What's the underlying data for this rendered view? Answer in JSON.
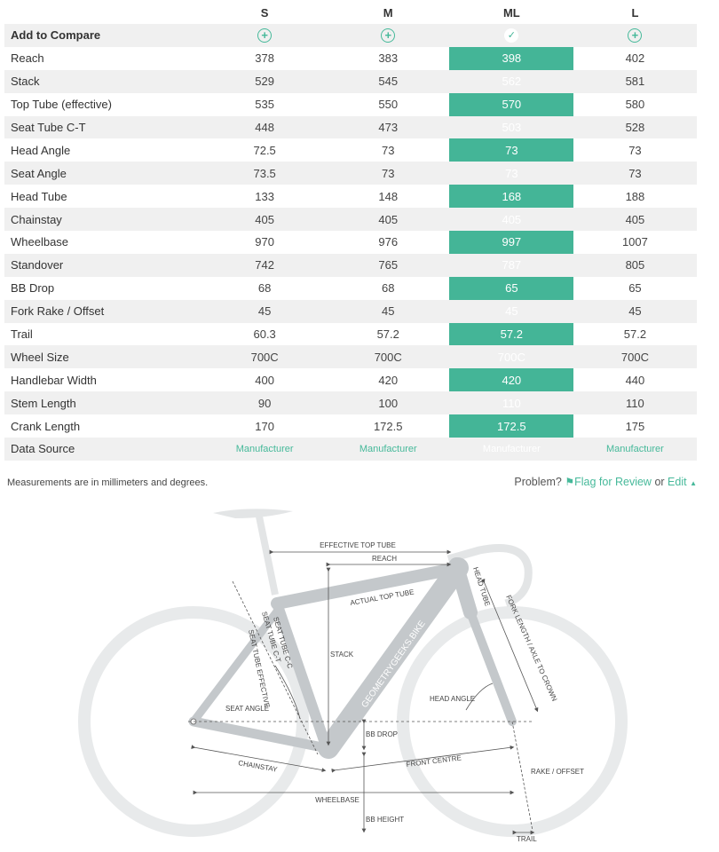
{
  "table": {
    "sizes": [
      "S",
      "M",
      "ML",
      "L"
    ],
    "selected_size": "ML",
    "compare_label": "Add to Compare",
    "rows": [
      {
        "label": "Reach",
        "values": [
          "378",
          "383",
          "398",
          "402"
        ]
      },
      {
        "label": "Stack",
        "values": [
          "529",
          "545",
          "562",
          "581"
        ]
      },
      {
        "label": "Top Tube (effective)",
        "values": [
          "535",
          "550",
          "570",
          "580"
        ]
      },
      {
        "label": "Seat Tube C-T",
        "values": [
          "448",
          "473",
          "503",
          "528"
        ]
      },
      {
        "label": "Head Angle",
        "values": [
          "72.5",
          "73",
          "73",
          "73"
        ]
      },
      {
        "label": "Seat Angle",
        "values": [
          "73.5",
          "73",
          "73",
          "73"
        ]
      },
      {
        "label": "Head Tube",
        "values": [
          "133",
          "148",
          "168",
          "188"
        ]
      },
      {
        "label": "Chainstay",
        "values": [
          "405",
          "405",
          "405",
          "405"
        ]
      },
      {
        "label": "Wheelbase",
        "values": [
          "970",
          "976",
          "997",
          "1007"
        ]
      },
      {
        "label": "Standover",
        "values": [
          "742",
          "765",
          "787",
          "805"
        ]
      },
      {
        "label": "BB Drop",
        "values": [
          "68",
          "68",
          "65",
          "65"
        ]
      },
      {
        "label": "Fork Rake / Offset",
        "values": [
          "45",
          "45",
          "45",
          "45"
        ]
      },
      {
        "label": "Trail",
        "values": [
          "60.3",
          "57.2",
          "57.2",
          "57.2"
        ]
      },
      {
        "label": "Wheel Size",
        "values": [
          "700C",
          "700C",
          "700C",
          "700C"
        ]
      },
      {
        "label": "Handlebar Width",
        "values": [
          "400",
          "420",
          "420",
          "440"
        ]
      },
      {
        "label": "Stem Length",
        "values": [
          "90",
          "100",
          "110",
          "110"
        ]
      },
      {
        "label": "Crank Length",
        "values": [
          "170",
          "172.5",
          "172.5",
          "175"
        ]
      },
      {
        "label": "Data Source",
        "values": [
          "Manufacturer",
          "Manufacturer",
          "Manufacturer",
          "Manufacturer"
        ]
      }
    ]
  },
  "footer": {
    "note": "Measurements are in millimeters and degrees.",
    "problem": "Problem?",
    "flag_label": "Flag for Review",
    "or": "or",
    "edit_label": "Edit"
  },
  "diagram": {
    "labels": {
      "effective_top_tube": "EFFECTIVE TOP TUBE",
      "reach": "REACH",
      "actual_top_tube": "ACTUAL TOP TUBE",
      "head_tube": "HEAD TUBE",
      "fork_length": "FORK LENGTH / AXLE TO CROWN",
      "stack": "STACK",
      "seat_tube_ct": "SEAT TUBE C-T",
      "seat_tube_cc": "SEAT TUBE C-C",
      "seat_tube_effective": "SEAT TUBE EFFECTIVE",
      "seat_angle": "SEAT ANGLE",
      "head_angle": "HEAD ANGLE",
      "brand": "GEOMETRYGEEKS.BIKE",
      "bb_drop": "BB DROP",
      "chainstay": "CHAINSTAY",
      "front_centre": "FRONT CENTRE",
      "rake_offset": "RAKE / OFFSET",
      "wheelbase": "WHEELBASE",
      "bb_height": "BB HEIGHT",
      "trail": "TRAIL"
    }
  },
  "colors": {
    "accent": "#44b597",
    "link": "#46b99a",
    "row_shade": "#f0f0f0",
    "frame": "#c5c9cc",
    "wheel": "#e6e8e9"
  }
}
